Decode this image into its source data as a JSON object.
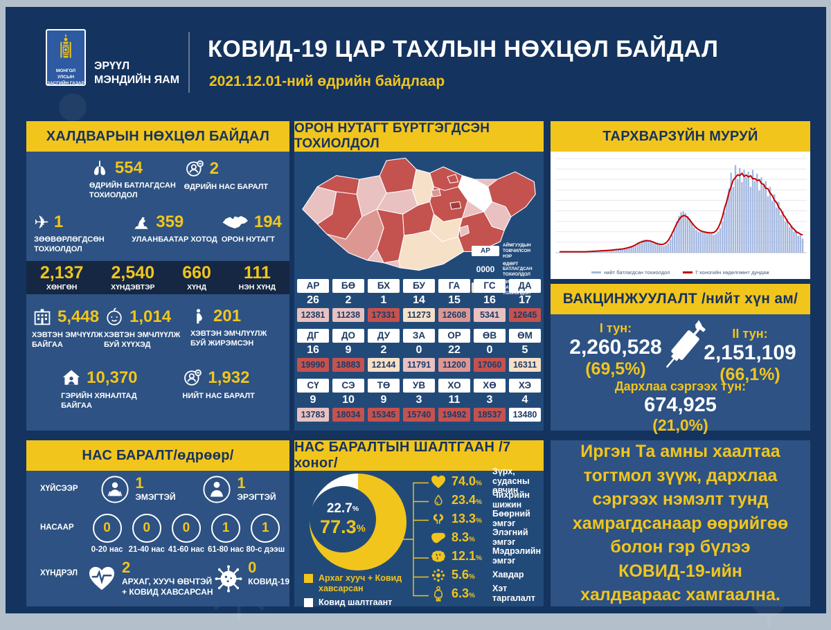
{
  "colors": {
    "yellow": "#f2c51d",
    "navy": "#14335e",
    "panel": "#2d5283",
    "panel_dark": "#224a79",
    "strip": "#152742",
    "header_text": "#16335e",
    "white": "#ffffff",
    "bar": "#a4b8e0",
    "line": "#c00000",
    "ub": "#a63c3a",
    "levels": {
      "dark": "#c4524f",
      "medium": "#dd9793",
      "light": "#e9c1c0",
      "cream": "#f6e0c8",
      "white": "#ffffff"
    }
  },
  "header": {
    "org_line1": "МОНГОЛ УЛСЫН",
    "org_line2": "ЗАСГИЙН ГАЗАР",
    "ministry_line1": "ЭРҮҮЛ",
    "ministry_line2": "МЭНДИЙН ЯАМ",
    "title": "КОВИД-19 ЦАР ТАХЛЫН НӨХЦӨЛ БАЙДАЛ",
    "subtitle": "2021.12.01-ний өдрийн байдлаар"
  },
  "infection_panel": {
    "title": "ХАЛДВАРЫН НӨХЦӨЛ БАЙДАЛ",
    "row1": [
      {
        "icon": "lungs-icon",
        "value": "554",
        "label": "ӨДРИЙН БАТЛАГДСАН ТОХИОЛДОЛ"
      },
      {
        "icon": "person-deceased-icon",
        "value": "2",
        "label": "ӨДРИЙН НАС БАРАЛТ"
      }
    ],
    "row2": [
      {
        "icon": "plane-icon",
        "value": "1",
        "label": "ЗӨӨВӨРЛӨГДСӨН ТОХИОЛДОЛ"
      },
      {
        "icon": "statue-icon",
        "value": "359",
        "label": "УЛААНБААТАР ХОТОД"
      },
      {
        "icon": "mongolia-icon",
        "value": "194",
        "label": "ОРОН НУТАГТ"
      }
    ],
    "severity": [
      {
        "value": "2,137",
        "label": "ХӨНГӨН"
      },
      {
        "value": "2,540",
        "label": "ХҮНДЭВТЭР"
      },
      {
        "value": "660",
        "label": "ХҮНД"
      },
      {
        "value": "111",
        "label": "НЭН ХҮНД"
      }
    ],
    "row3": [
      {
        "icon": "hospital-icon",
        "value": "5,448",
        "label": "ХЭВТЭН ЭМЧҮҮЛЖ БАЙГАА"
      },
      {
        "icon": "baby-icon",
        "value": "1,014",
        "label": "ХЭВТЭН ЭМЧЛҮҮЛЖ БУЙ ХҮҮХЭД"
      },
      {
        "icon": "pregnant-icon",
        "value": "201",
        "label": "ХЭВТЭН ЭМЧЛҮҮЛЖ БУЙ ЖИРЭМСЭН"
      }
    ],
    "row4": [
      {
        "icon": "house-icon",
        "value": "10,370",
        "label": "ГЭРИЙН ХЯНАЛТАД БАЙГАА"
      },
      {
        "icon": "person-deceased-icon",
        "value": "1,932",
        "label": "НИЙТ НАС БАРАЛТ"
      }
    ]
  },
  "deaths_panel": {
    "title": "НАС БАРАЛТ/өдрөөр/",
    "gender_label": "ХҮЙСЭЭР",
    "genders": [
      {
        "icon": "female-icon",
        "value": "1",
        "label": "ЭМЭГТЭЙ"
      },
      {
        "icon": "male-icon",
        "value": "1",
        "label": "ЭРЭГТЭЙ"
      }
    ],
    "age_label": "НАСААР",
    "ages": [
      {
        "value": "0",
        "label": "0-20 нас"
      },
      {
        "value": "0",
        "label": "21-40 нас"
      },
      {
        "value": "0",
        "label": "41-60 нас"
      },
      {
        "value": "1",
        "label": "61-80 нас"
      },
      {
        "value": "1",
        "label": "80-с дээш"
      }
    ],
    "complication_label": "ХҮНДРЭЛ",
    "complications": [
      {
        "icon": "heart-pulse-icon",
        "value": "2",
        "label": "АРХАГ, ХУУЧ ӨВЧТЭЙ + КОВИД ХАВСАРСАН"
      },
      {
        "icon": "virus-icon",
        "value": "0",
        "label": "КОВИД-19"
      }
    ]
  },
  "regions_panel": {
    "title": "ОРОН НУТАГТ БҮРТГЭГДСЭН ТОХИОЛДОЛ",
    "legend": {
      "abbr_sample": "АР",
      "abbr_label": "АЙМГУУДЫН ТОВЧИЛСОН НЭР",
      "daily_sample": "0000",
      "daily_label": "ӨДӨРТ БАТЛАГДСАН ТОХИОЛДОЛ",
      "total_sample": "0000",
      "total_label": "НИЙТ БАТЛАГДСАН ТОХИОЛДОЛ"
    },
    "provinces": [
      {
        "abbr": "АР",
        "daily": "26",
        "total": "12381",
        "level": "light"
      },
      {
        "abbr": "БӨ",
        "daily": "2",
        "total": "11238",
        "level": "light"
      },
      {
        "abbr": "БХ",
        "daily": "1",
        "total": "17331",
        "level": "dark"
      },
      {
        "abbr": "БУ",
        "daily": "14",
        "total": "11273",
        "level": "cream"
      },
      {
        "abbr": "ГА",
        "daily": "15",
        "total": "12608",
        "level": "medium"
      },
      {
        "abbr": "ГС",
        "daily": "16",
        "total": "5341",
        "level": "light"
      },
      {
        "abbr": "ДА",
        "daily": "17",
        "total": "12645",
        "level": "dark"
      },
      {
        "abbr": "ДГ",
        "daily": "16",
        "total": "19990",
        "level": "dark"
      },
      {
        "abbr": "ДО",
        "daily": "9",
        "total": "18883",
        "level": "dark"
      },
      {
        "abbr": "ДУ",
        "daily": "2",
        "total": "12144",
        "level": "cream"
      },
      {
        "abbr": "ЗА",
        "daily": "0",
        "total": "11791",
        "level": "light"
      },
      {
        "abbr": "ОР",
        "daily": "22",
        "total": "11200",
        "level": "medium"
      },
      {
        "abbr": "ӨВ",
        "daily": "0",
        "total": "17060",
        "level": "dark"
      },
      {
        "abbr": "ӨМ",
        "daily": "5",
        "total": "16311",
        "level": "cream"
      },
      {
        "abbr": "СҮ",
        "daily": "9",
        "total": "13783",
        "level": "light"
      },
      {
        "abbr": "СЭ",
        "daily": "10",
        "total": "18034",
        "level": "dark"
      },
      {
        "abbr": "ТӨ",
        "daily": "9",
        "total": "15345",
        "level": "dark"
      },
      {
        "abbr": "УВ",
        "daily": "3",
        "total": "15740",
        "level": "dark"
      },
      {
        "abbr": "ХО",
        "daily": "11",
        "total": "19492",
        "level": "dark"
      },
      {
        "abbr": "ХӨ",
        "daily": "3",
        "total": "18537",
        "level": "dark"
      },
      {
        "abbr": "ХЭ",
        "daily": "4",
        "total": "13480",
        "level": "white"
      }
    ]
  },
  "curve_panel": {
    "title": "ТАРХВАРЗҮЙН МУРУЙ"
  },
  "vaccination_panel": {
    "title": "ВАКЦИНЖУУЛАЛТ /нийт хүн ам/",
    "dose1_label": "I тун:",
    "dose1_value": "2,260,528",
    "dose1_pct": "(69,5%)",
    "dose2_label": "II тун:",
    "dose2_value": "2,151,109",
    "dose2_pct": "(66,1%)",
    "booster_label": "Дархлаа сэргээх тун:",
    "booster_value": "674,925",
    "booster_pct": "(21,0%)"
  },
  "causes_panel": {
    "title": "НАС БАРАЛТЫН ШАЛТГААН /7 хоног/",
    "donut_pct_covid": "22.7",
    "donut_pct_comorbid": "77.3",
    "percent_sign": "%",
    "legend": [
      {
        "color": "#f2c51d",
        "label": "Архаг хууч + Ковид хавсарсан"
      },
      {
        "color": "#ffffff",
        "label": "Ковид шалтгаант"
      }
    ],
    "causes": [
      {
        "icon": "heart-icon",
        "pct": "74.0",
        "label": "Зүрх, судасны өвчин"
      },
      {
        "icon": "diabetes-icon",
        "pct": "23.4",
        "label": "Чихрийн шижин"
      },
      {
        "icon": "kidney-icon",
        "pct": "13.3",
        "label": "Бөөрний эмгэг"
      },
      {
        "icon": "liver-icon",
        "pct": "8.3",
        "label": "Элэгний эмгэг"
      },
      {
        "icon": "brain-icon",
        "pct": "12.1",
        "label": "Мэдрэлийн эмгэг"
      },
      {
        "icon": "cancer-icon",
        "pct": "5.6",
        "label": "Хавдар"
      },
      {
        "icon": "obesity-icon",
        "pct": "6.3",
        "label": "Хэт таргалалт"
      }
    ]
  },
  "message_panel": {
    "text": "Иргэн Та амны хаалтаа тогтмол зүүж, дархлаа сэргээх нэмэлт тунд хамрагдсанаар өөрийгөө болон гэр бүлээ КОВИД-19-ийн халдвараас хамгаална."
  },
  "chart_data": [
    {
      "id": "epidemic-curve",
      "type": "area",
      "title": "ТАРХВАРЗҮЙН МУРУЙ",
      "legend": [
        "нийт батлагдсан тохиолдол",
        "7 хоногийн хөдөлгөөнт дундаж"
      ],
      "xlabel": "",
      "ylabel": "",
      "ylim": [
        0,
        100
      ],
      "grid": true,
      "legend_position": "bottom",
      "note": "daily confirmed cases (relative scale, no axis tick labels shown); red line = 7-day moving average",
      "values": [
        1,
        1,
        1,
        1,
        1,
        1,
        1,
        1,
        1,
        1,
        1,
        1,
        1,
        1,
        1,
        1,
        2,
        2,
        2,
        2,
        2,
        2,
        2,
        3,
        3,
        3,
        3,
        3,
        4,
        4,
        4,
        5,
        5,
        6,
        7,
        8,
        9,
        11,
        13,
        14,
        14,
        13,
        12,
        12,
        11,
        10,
        8,
        7,
        7,
        8,
        10,
        14,
        19,
        26,
        33,
        39,
        43,
        44,
        42,
        39,
        36,
        31,
        27,
        24,
        22,
        22,
        23,
        23,
        22,
        21,
        20,
        19,
        20,
        22,
        26,
        33,
        43,
        55,
        68,
        85,
        70,
        93,
        78,
        90,
        75,
        88,
        80,
        86,
        70,
        88,
        76,
        84,
        66,
        80,
        72,
        76,
        60,
        70,
        55,
        62,
        48,
        54,
        40,
        44,
        33,
        36,
        27,
        29,
        22,
        24,
        18,
        19,
        15
      ]
    },
    {
      "id": "death-causes-donut",
      "type": "pie",
      "labels": [
        "Архаг хууч + Ковид хавсарсан",
        "Ковид шалтгаант"
      ],
      "values": [
        77.3,
        22.7
      ],
      "colors": [
        "#f2c51d",
        "#ffffff"
      ],
      "title": "НАС БАРАЛТЫН ШАЛТГААН /7 хоног/"
    },
    {
      "id": "province-map",
      "type": "heatmap",
      "title": "ОРОН НУТАГТ БҮРТГЭГДСЭН ТОХИОЛДОЛ",
      "note": "choropleth of Mongolia; values listed in regions_panel.provinces (daily / total confirmed per province)"
    }
  ]
}
